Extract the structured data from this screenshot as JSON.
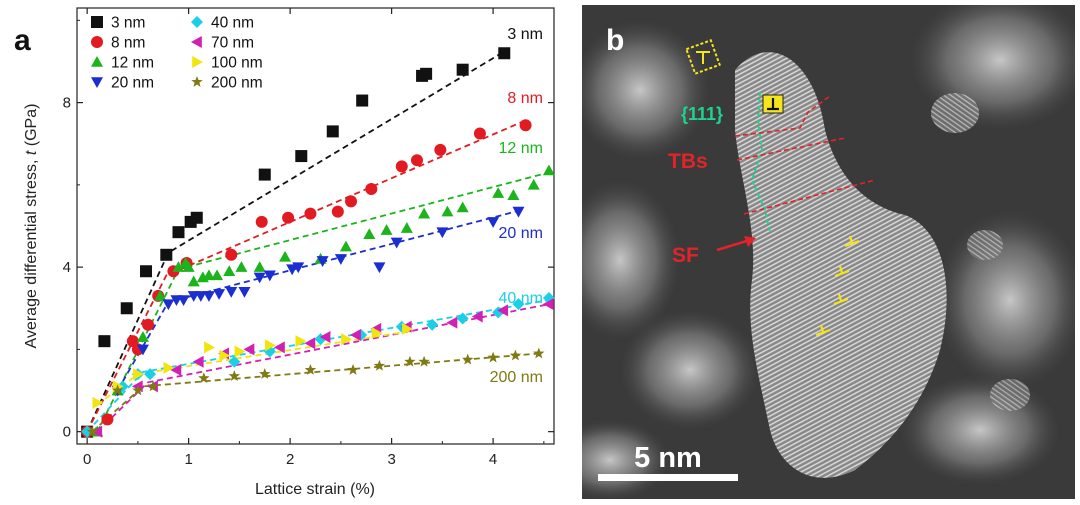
{
  "panels": {
    "a_letter": "a",
    "b_letter": "b"
  },
  "chart_data": {
    "type": "scatter",
    "title": "",
    "xlabel": "Lattice strain (%)",
    "ylabel": "Average differential stress, t (GPa)",
    "ylabel_prefix": "Average differential stress, ",
    "ylabel_var": "t",
    "ylabel_suffix": " (GPa)",
    "xlim": [
      -0.1,
      4.6
    ],
    "ylim": [
      -0.3,
      10.3
    ],
    "xticks": [
      0,
      1,
      2,
      3,
      4
    ],
    "yticks": [
      0,
      4,
      8
    ],
    "legend_position": "top-left",
    "series": [
      {
        "name": "3 nm",
        "label": "3 nm",
        "color": "#111111",
        "marker": "square",
        "x": [
          0.0,
          0.17,
          0.39,
          0.58,
          0.78,
          0.9,
          1.02,
          1.08,
          1.75,
          2.11,
          2.42,
          2.71,
          3.3,
          3.34,
          3.7,
          4.11
        ],
        "y": [
          0.0,
          2.2,
          3.0,
          3.9,
          4.3,
          4.85,
          5.1,
          5.2,
          6.25,
          6.7,
          7.3,
          8.05,
          8.65,
          8.7,
          8.8,
          9.2
        ],
        "fit_x": [
          0.0,
          0.8,
          4.15
        ],
        "fit_y": [
          0.0,
          4.35,
          9.3
        ]
      },
      {
        "name": "8 nm",
        "label": "8 nm",
        "color": "#e21b23",
        "marker": "circle",
        "x": [
          0.0,
          0.2,
          0.45,
          0.5,
          0.6,
          0.7,
          0.85,
          0.98,
          1.42,
          1.72,
          1.98,
          2.2,
          2.47,
          2.6,
          2.8,
          3.1,
          3.25,
          3.48,
          3.87,
          4.32
        ],
        "y": [
          0.0,
          0.3,
          2.2,
          2.0,
          2.6,
          3.3,
          3.9,
          4.1,
          4.3,
          5.1,
          5.2,
          5.3,
          5.35,
          5.6,
          5.9,
          6.45,
          6.6,
          6.85,
          7.25,
          7.45
        ],
        "fit_x": [
          0.0,
          0.78,
          4.35
        ],
        "fit_y": [
          0.0,
          3.8,
          7.6
        ]
      },
      {
        "name": "12 nm",
        "label": "12 nm",
        "color": "#1bb51b",
        "marker": "triangle-up",
        "x": [
          0.1,
          0.3,
          0.55,
          0.72,
          0.9,
          0.97,
          1.0,
          1.05,
          1.14,
          1.2,
          1.28,
          1.4,
          1.52,
          1.7,
          1.95,
          2.3,
          2.55,
          2.78,
          2.95,
          3.15,
          3.32,
          3.55,
          3.7,
          4.05,
          4.2,
          4.4,
          4.55
        ],
        "y": [
          0.0,
          1.0,
          2.3,
          3.3,
          4.0,
          4.1,
          4.0,
          3.65,
          3.75,
          3.8,
          3.8,
          3.9,
          4.0,
          4.0,
          4.25,
          4.2,
          4.5,
          4.8,
          4.9,
          4.95,
          5.3,
          5.35,
          5.45,
          5.8,
          5.75,
          6.0,
          6.35
        ],
        "fit_x": [
          0.1,
          0.9,
          4.55
        ],
        "fit_y": [
          0.0,
          3.95,
          6.3
        ]
      },
      {
        "name": "20 nm",
        "label": "20 nm",
        "color": "#1b2ecf",
        "marker": "triangle-down",
        "x": [
          0.3,
          0.55,
          0.8,
          0.88,
          0.95,
          1.05,
          1.12,
          1.2,
          1.3,
          1.42,
          1.55,
          1.7,
          1.8,
          2.02,
          2.08,
          2.32,
          2.5,
          2.88,
          3.05,
          3.5,
          4.0,
          4.25
        ],
        "y": [
          1.0,
          2.0,
          3.1,
          3.2,
          3.2,
          3.3,
          3.3,
          3.3,
          3.35,
          3.4,
          3.4,
          3.75,
          3.8,
          3.95,
          4.0,
          4.15,
          4.2,
          4.0,
          4.6,
          4.85,
          5.1,
          5.35
        ],
        "fit_x": [
          0.3,
          0.8,
          4.3
        ],
        "fit_y": [
          1.0,
          3.15,
          5.4
        ]
      },
      {
        "name": "40 nm",
        "label": "40 nm",
        "color": "#19d0e6",
        "marker": "diamond",
        "x": [
          0.0,
          0.35,
          0.5,
          0.62,
          1.45,
          1.8,
          2.3,
          2.7,
          3.1,
          3.4,
          3.7,
          4.05,
          4.25,
          4.55
        ],
        "y": [
          0.0,
          1.1,
          1.4,
          1.4,
          1.7,
          1.95,
          2.25,
          2.35,
          2.55,
          2.6,
          2.75,
          2.9,
          3.1,
          3.25
        ],
        "fit_x": [
          0.0,
          0.55,
          4.55
        ],
        "fit_y": [
          0.0,
          1.45,
          3.2
        ]
      },
      {
        "name": "70 nm",
        "label": "70 nm",
        "color": "#d21fb4",
        "marker": "triangle-left",
        "x": [
          0.1,
          0.5,
          0.65,
          0.88,
          1.1,
          1.35,
          1.6,
          1.9,
          2.2,
          2.35,
          2.65,
          2.85,
          3.15,
          3.6,
          3.85,
          4.1,
          4.55
        ],
        "y": [
          0.0,
          1.1,
          1.1,
          1.5,
          1.7,
          1.9,
          2.0,
          2.05,
          2.15,
          2.3,
          2.35,
          2.5,
          2.55,
          2.65,
          2.8,
          2.95,
          3.1
        ],
        "fit_x": [
          0.1,
          0.6,
          4.55
        ],
        "fit_y": [
          0.0,
          1.2,
          3.1
        ]
      },
      {
        "name": "100 nm",
        "label": "100 nm",
        "color": "#f2e40f",
        "marker": "triangle-right",
        "x": [
          0.1,
          0.3,
          0.5,
          0.8,
          1.2,
          1.35,
          1.5,
          1.8,
          2.1,
          2.55,
          2.85,
          3.15
        ],
        "y": [
          0.7,
          1.1,
          1.4,
          1.55,
          2.05,
          1.85,
          1.95,
          2.1,
          2.2,
          2.25,
          2.4,
          2.5
        ],
        "fit_x": [
          0.1,
          0.5,
          3.2
        ],
        "fit_y": [
          0.65,
          1.4,
          2.45
        ]
      },
      {
        "name": "200 nm",
        "label": "200 nm",
        "color": "#7f7a12",
        "marker": "star",
        "x": [
          0.05,
          0.3,
          0.5,
          0.65,
          1.15,
          1.45,
          1.75,
          2.2,
          2.62,
          2.88,
          3.18,
          3.32,
          3.75,
          4.0,
          4.22,
          4.45
        ],
        "y": [
          0.0,
          1.0,
          1.0,
          1.1,
          1.3,
          1.35,
          1.4,
          1.5,
          1.5,
          1.6,
          1.7,
          1.7,
          1.75,
          1.8,
          1.85,
          1.9
        ],
        "fit_x": [
          0.05,
          0.55,
          4.45
        ],
        "fit_y": [
          0.0,
          1.1,
          1.9
        ]
      }
    ],
    "annotations": [
      {
        "text": "3 nm",
        "color": "#111111"
      },
      {
        "text": "8 nm",
        "color": "#e21b23"
      },
      {
        "text": "12 nm",
        "color": "#1bb51b"
      },
      {
        "text": "20 nm",
        "color": "#1b2ecf"
      },
      {
        "text": "40 nm",
        "color": "#19d0e6"
      },
      {
        "text": "200 nm",
        "color": "#7f7a12"
      }
    ]
  },
  "micrograph": {
    "label_111": "{111}",
    "label_tbs": "TBs",
    "label_sf": "SF",
    "scale_bar_label": "5 nm",
    "colors": {
      "red": "#e0242a",
      "green": "#1fd38f",
      "yellow": "#f6e51a",
      "white": "#ffffff"
    }
  }
}
